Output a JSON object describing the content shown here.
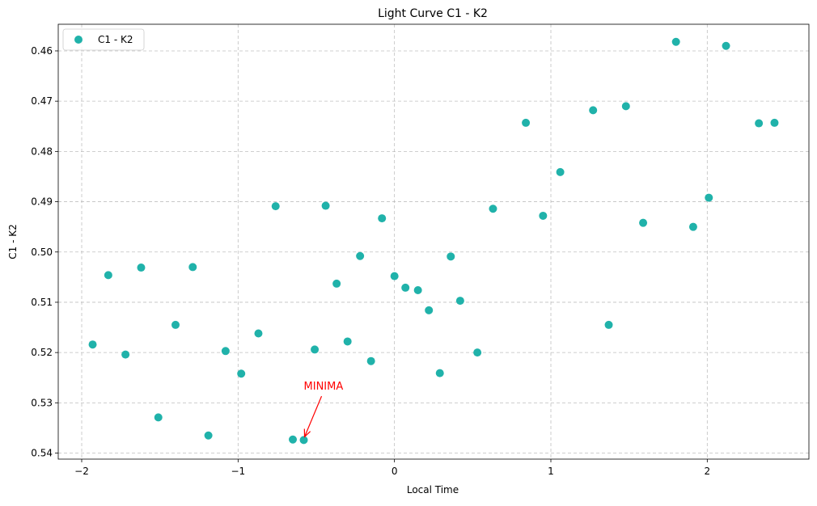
{
  "chart_data": {
    "type": "scatter",
    "title": "Light Curve C1 - K2",
    "xlabel": "Local Time",
    "ylabel": "C1 - K2",
    "xlim": [
      -2.15,
      2.65
    ],
    "ylim": [
      0.5412,
      0.4547
    ],
    "y_inverted": true,
    "xticks": [
      -2,
      -1,
      0,
      1,
      2
    ],
    "xtick_labels": [
      "−2",
      "−1",
      "0",
      "1",
      "2"
    ],
    "yticks": [
      0.46,
      0.47,
      0.48,
      0.49,
      0.5,
      0.51,
      0.52,
      0.53,
      0.54
    ],
    "ytick_labels": [
      "0.46",
      "0.47",
      "0.48",
      "0.49",
      "0.50",
      "0.51",
      "0.52",
      "0.53",
      "0.54"
    ],
    "grid": true,
    "legend_position": "top-left",
    "series": [
      {
        "name": "C1 - K2",
        "color": "#20b2aa",
        "points": [
          {
            "x": -1.93,
            "y": 0.5184
          },
          {
            "x": -1.83,
            "y": 0.5046
          },
          {
            "x": -1.72,
            "y": 0.5204
          },
          {
            "x": -1.62,
            "y": 0.5031
          },
          {
            "x": -1.51,
            "y": 0.5329
          },
          {
            "x": -1.4,
            "y": 0.5145
          },
          {
            "x": -1.29,
            "y": 0.503
          },
          {
            "x": -1.19,
            "y": 0.5365
          },
          {
            "x": -1.08,
            "y": 0.5197
          },
          {
            "x": -0.98,
            "y": 0.5242
          },
          {
            "x": -0.87,
            "y": 0.5162
          },
          {
            "x": -0.76,
            "y": 0.4909
          },
          {
            "x": -0.65,
            "y": 0.5373
          },
          {
            "x": -0.58,
            "y": 0.5374
          },
          {
            "x": -0.51,
            "y": 0.5194
          },
          {
            "x": -0.44,
            "y": 0.4908
          },
          {
            "x": -0.37,
            "y": 0.5063
          },
          {
            "x": -0.3,
            "y": 0.5178
          },
          {
            "x": -0.22,
            "y": 0.5008
          },
          {
            "x": -0.15,
            "y": 0.5217
          },
          {
            "x": -0.08,
            "y": 0.4933
          },
          {
            "x": 0.0,
            "y": 0.5048
          },
          {
            "x": 0.07,
            "y": 0.5071
          },
          {
            "x": 0.15,
            "y": 0.5076
          },
          {
            "x": 0.22,
            "y": 0.5116
          },
          {
            "x": 0.29,
            "y": 0.5241
          },
          {
            "x": 0.36,
            "y": 0.5009
          },
          {
            "x": 0.42,
            "y": 0.5097
          },
          {
            "x": 0.53,
            "y": 0.52
          },
          {
            "x": 0.63,
            "y": 0.4914
          },
          {
            "x": 0.84,
            "y": 0.4743
          },
          {
            "x": 0.95,
            "y": 0.4928
          },
          {
            "x": 1.06,
            "y": 0.4841
          },
          {
            "x": 1.27,
            "y": 0.4718
          },
          {
            "x": 1.37,
            "y": 0.5145
          },
          {
            "x": 1.48,
            "y": 0.471
          },
          {
            "x": 1.59,
            "y": 0.4942
          },
          {
            "x": 1.8,
            "y": 0.4582
          },
          {
            "x": 1.91,
            "y": 0.495
          },
          {
            "x": 2.01,
            "y": 0.4892
          },
          {
            "x": 2.12,
            "y": 0.459
          },
          {
            "x": 2.33,
            "y": 0.4744
          },
          {
            "x": 2.43,
            "y": 0.4743
          }
        ]
      }
    ],
    "annotations": [
      {
        "text": "MINIMA",
        "color": "#ff0000",
        "point": {
          "x": -0.58,
          "y": 0.5374
        },
        "text_at": {
          "x": -0.58,
          "y": 0.5274
        }
      }
    ]
  }
}
